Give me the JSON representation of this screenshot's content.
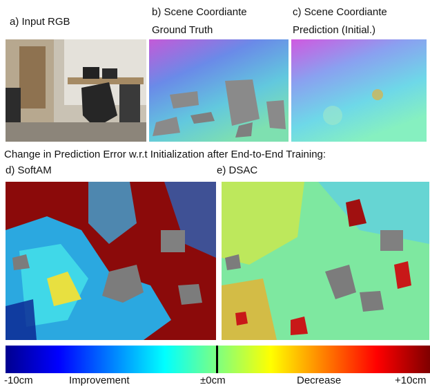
{
  "panels": {
    "input": {
      "lines": [
        "a) Input RGB"
      ]
    },
    "ground_truth": {
      "lines": [
        "b) Scene Coordiante",
        "Ground Truth"
      ]
    },
    "prediction": {
      "lines": [
        "c) Scene Coordiante",
        "Prediction (Initial.)"
      ]
    }
  },
  "section_title": "Change in Prediction Error w.r.t Initialization after End-to-End Training:",
  "bottom_panels": {
    "softam": {
      "label": "d) SoftAM"
    },
    "dsac": {
      "label": "e) DSAC"
    }
  },
  "colorbar": {
    "labels": [
      "-10cm",
      "Improvement",
      "±0cm",
      "Decrease",
      "+10cm"
    ]
  }
}
